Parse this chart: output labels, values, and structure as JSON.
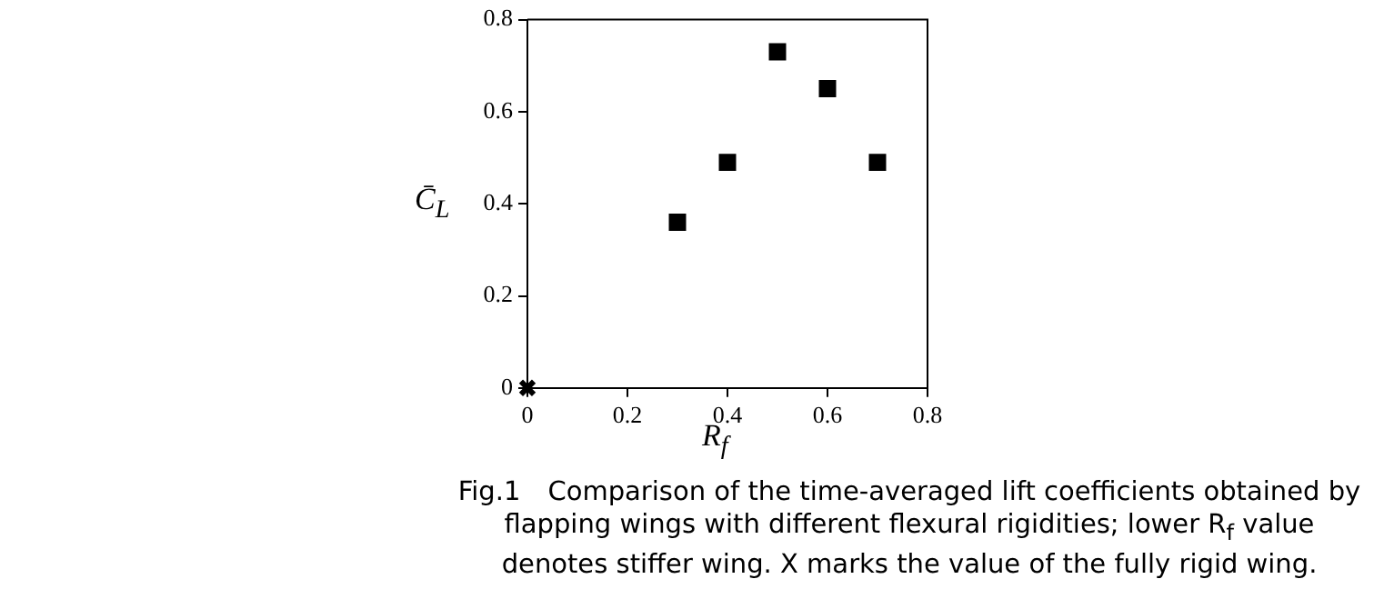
{
  "chart_data": {
    "type": "scatter",
    "xlabel": "R$_{f}$",
    "ylabel": "C̄$_{L}$",
    "xlim": [
      0,
      0.8
    ],
    "xticks": [
      0,
      0.2,
      0.4,
      0.6,
      0.8
    ],
    "ylim": [
      0,
      0.8
    ],
    "yticks": [
      0,
      0.2,
      0.4,
      0.6,
      0.8
    ],
    "grid": false,
    "legend": false,
    "series": [
      {
        "color": "#000000",
        "marker": "square",
        "x": [
          0.3,
          0.4,
          0.5,
          0.6,
          0.7
        ],
        "values": [
          0.36,
          0.49,
          0.73,
          0.65,
          0.49
        ]
      },
      {
        "color": "#000000",
        "marker": "cross",
        "x": [
          0
        ],
        "values": [
          0
        ]
      }
    ],
    "annotations": [
      "Fig.1　Comparison of the time-averaged lift coefficients obtained by flapping wings with different flexural rigidities; lower R$_{f}$ value denotes stiffer wing. X marks the value of the fully rigid wing."
    ]
  }
}
